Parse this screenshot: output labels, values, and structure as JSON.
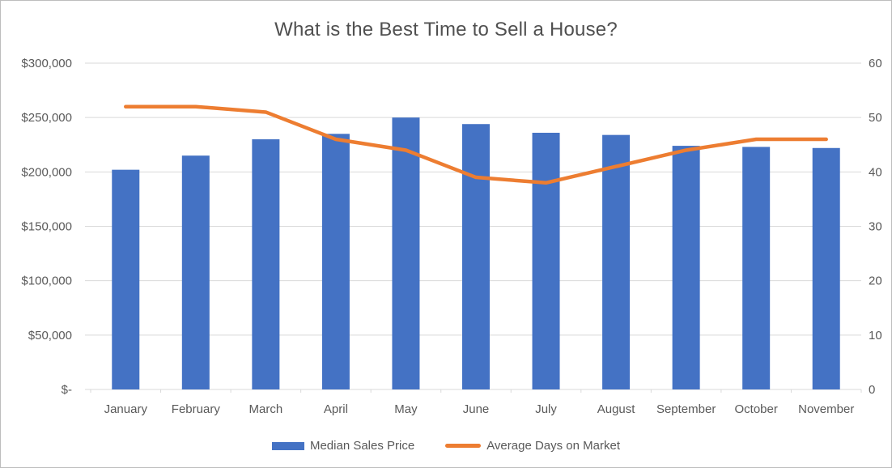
{
  "chart_data": {
    "type": "combo-bar-line",
    "title": "What is the Best Time to Sell a House?",
    "categories": [
      "January",
      "February",
      "March",
      "April",
      "May",
      "June",
      "July",
      "August",
      "September",
      "October",
      "November"
    ],
    "series": [
      {
        "name": "Median Sales Price",
        "type": "bar",
        "axis": "left",
        "color": "#4472C4",
        "values": [
          202000,
          215000,
          230000,
          235000,
          250000,
          244000,
          236000,
          234000,
          224000,
          223000,
          222000
        ]
      },
      {
        "name": "Average Days on Market",
        "type": "line",
        "axis": "right",
        "color": "#ED7D31",
        "values": [
          52,
          52,
          51,
          46,
          44,
          39,
          38,
          41,
          44,
          46,
          46
        ]
      }
    ],
    "left_axis": {
      "min": 0,
      "max": 300000,
      "step": 50000,
      "tick_labels": [
        "$-",
        "$50,000",
        "$100,000",
        "$150,000",
        "$200,000",
        "$250,000",
        "$300,000"
      ]
    },
    "right_axis": {
      "min": 0,
      "max": 60,
      "step": 10,
      "tick_labels": [
        "0",
        "10",
        "20",
        "30",
        "40",
        "50",
        "60"
      ]
    },
    "grid": true,
    "legend_position": "bottom",
    "colors": {
      "gridline": "#D9D9D9",
      "axis_text": "#595959",
      "title_text": "#505050"
    }
  }
}
